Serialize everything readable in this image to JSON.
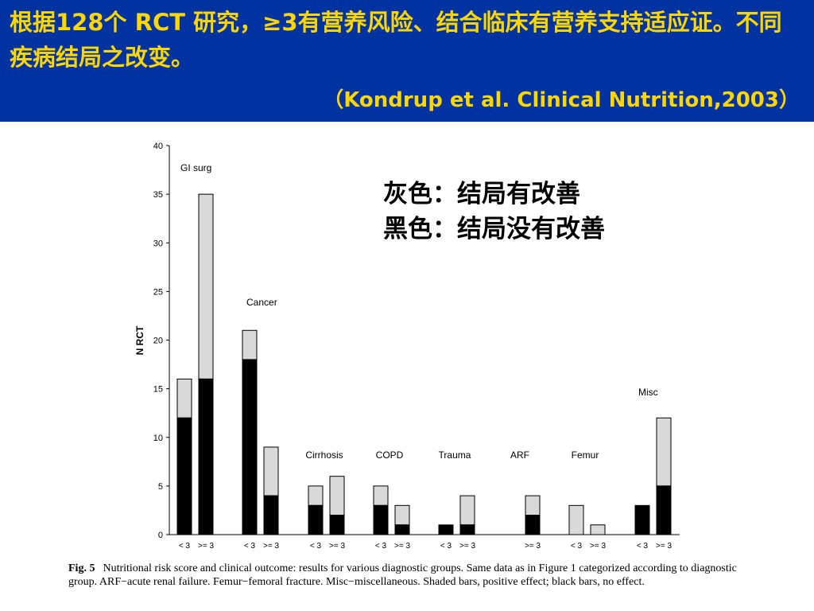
{
  "header": {
    "title": "根据128个 RCT 研究，≥3有营养风险、结合临床有营养支持适应证。不同疾病结局之改变。",
    "citation": "（Kondrup et al. Clinical Nutrition,2003）"
  },
  "legend": {
    "gray": "灰色：结局有改善",
    "black": "黑色：结局没有改善"
  },
  "colors": {
    "header_bg": "#0033a0",
    "header_text": "#ffd700",
    "positive": "#d9d9d9",
    "no_effect": "#000000"
  },
  "caption": {
    "label": "Fig. 5",
    "text": "Nutritional risk score and clinical outcome: results for various diagnostic groups. Same data as in Figure 1 categorized according to diagnostic group. ARF−acute renal failure. Femur−femoral fracture. Misc−miscellaneous. Shaded bars, positive effect; black bars, no effect."
  },
  "chart_data": {
    "type": "bar",
    "stacked": true,
    "ylabel": "N RCT",
    "ylim": [
      0,
      40
    ],
    "yticks": [
      0,
      5,
      10,
      15,
      20,
      25,
      30,
      35,
      40
    ],
    "series_meaning": {
      "no_effect": "black",
      "positive": "gray"
    },
    "groups": [
      {
        "name": "GI surg",
        "bars": [
          {
            "label": "< 3",
            "no_effect": 12,
            "positive": 4
          },
          {
            "label": ">= 3",
            "no_effect": 16,
            "positive": 19
          }
        ]
      },
      {
        "name": "Cancer",
        "bars": [
          {
            "label": "< 3",
            "no_effect": 18,
            "positive": 3
          },
          {
            "label": ">= 3",
            "no_effect": 4,
            "positive": 5
          }
        ]
      },
      {
        "name": "Cirrhosis",
        "bars": [
          {
            "label": "< 3",
            "no_effect": 3,
            "positive": 2
          },
          {
            "label": ">= 3",
            "no_effect": 2,
            "positive": 4
          }
        ]
      },
      {
        "name": "COPD",
        "bars": [
          {
            "label": "< 3",
            "no_effect": 3,
            "positive": 2
          },
          {
            "label": ">= 3",
            "no_effect": 1,
            "positive": 2
          }
        ]
      },
      {
        "name": "Trauma",
        "bars": [
          {
            "label": "< 3",
            "no_effect": 1,
            "positive": 0
          },
          {
            "label": ">= 3",
            "no_effect": 1,
            "positive": 3
          }
        ]
      },
      {
        "name": "ARF",
        "bars": [
          {
            "label": ">= 3",
            "no_effect": 2,
            "positive": 2
          }
        ]
      },
      {
        "name": "Femur",
        "bars": [
          {
            "label": "< 3",
            "no_effect": 0,
            "positive": 3
          },
          {
            "label": ">= 3",
            "no_effect": 0,
            "positive": 1
          }
        ]
      },
      {
        "name": "Misc",
        "bars": [
          {
            "label": "< 3",
            "no_effect": 3,
            "positive": 0
          },
          {
            "label": ">= 3",
            "no_effect": 5,
            "positive": 7
          }
        ]
      }
    ]
  }
}
